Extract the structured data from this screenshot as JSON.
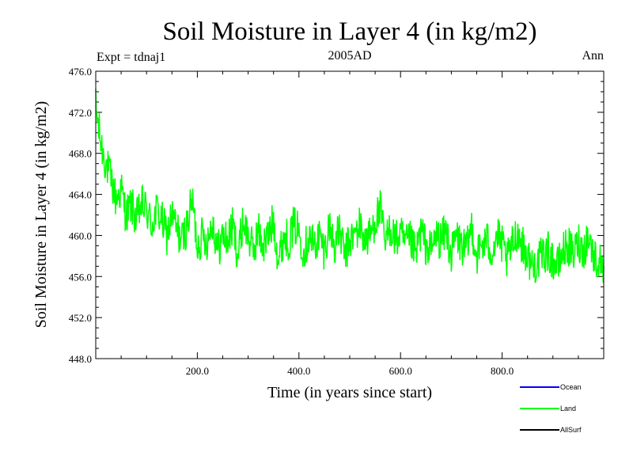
{
  "chart_data": {
    "type": "line",
    "title": "Soil Moisture in Layer 4 (in kg/m2)",
    "subtitle_left": "Expt = tdnaj1",
    "subtitle_center": "2005AD",
    "subtitle_right": "Ann",
    "xlabel": "Time (in years since start)",
    "ylabel": "Soil Moisture in Layer 4 (in kg/m2)",
    "xlim": [
      0,
      1000
    ],
    "ylim": [
      448,
      476
    ],
    "xticks": [
      200,
      400,
      600,
      800
    ],
    "xtick_labels": [
      "200.0",
      "400.0",
      "600.0",
      "800.0"
    ],
    "yticks": [
      448,
      452,
      456,
      460,
      464,
      468,
      472,
      476
    ],
    "ytick_labels": [
      "448.0",
      "452.0",
      "456.0",
      "460.0",
      "464.0",
      "468.0",
      "472.0",
      "476.0"
    ],
    "series": [
      {
        "name": "Ocean",
        "color": "#0000ff",
        "x": [],
        "values": []
      },
      {
        "name": "Land",
        "color": "#00ff00",
        "x": [
          0,
          10,
          20,
          30,
          40,
          50,
          60,
          70,
          80,
          90,
          100,
          110,
          120,
          130,
          140,
          150,
          160,
          170,
          180,
          190,
          200,
          210,
          220,
          230,
          240,
          250,
          260,
          270,
          280,
          290,
          300,
          310,
          320,
          330,
          340,
          350,
          360,
          370,
          380,
          390,
          400,
          410,
          420,
          430,
          440,
          450,
          460,
          470,
          480,
          490,
          500,
          510,
          520,
          530,
          540,
          550,
          560,
          570,
          580,
          590,
          600,
          610,
          620,
          630,
          640,
          650,
          660,
          670,
          680,
          690,
          700,
          710,
          720,
          730,
          740,
          750,
          760,
          770,
          780,
          790,
          800,
          810,
          820,
          830,
          840,
          850,
          860,
          870,
          880,
          890,
          900,
          910,
          920,
          930,
          940,
          950,
          960,
          970,
          980,
          990,
          1000
        ],
        "values": [
          472.5,
          469.0,
          467.0,
          465.5,
          463.5,
          464.5,
          462.0,
          463.0,
          461.5,
          463.0,
          462.5,
          461.0,
          462.5,
          461.5,
          460.0,
          462.0,
          460.5,
          459.5,
          461.0,
          463.5,
          459.0,
          460.0,
          459.5,
          461.5,
          458.5,
          460.0,
          459.5,
          461.0,
          458.0,
          461.5,
          460.0,
          458.5,
          460.5,
          459.0,
          460.0,
          461.5,
          457.5,
          460.0,
          459.5,
          461.0,
          460.5,
          458.5,
          460.0,
          459.0,
          460.0,
          458.5,
          461.0,
          459.0,
          460.5,
          458.0,
          459.5,
          460.0,
          461.0,
          459.5,
          460.0,
          461.5,
          462.5,
          459.0,
          461.0,
          459.5,
          460.0,
          459.0,
          459.5,
          458.0,
          460.5,
          459.0,
          458.5,
          460.0,
          459.5,
          460.5,
          458.0,
          460.0,
          459.0,
          458.5,
          461.0,
          458.0,
          459.0,
          459.5,
          458.5,
          460.0,
          459.0,
          457.5,
          459.0,
          460.5,
          459.0,
          458.0,
          457.0,
          457.5,
          458.0,
          458.5,
          457.5,
          457.0,
          458.5,
          459.0,
          458.0,
          459.5,
          458.5,
          460.0,
          458.0,
          457.5,
          457.0
        ]
      },
      {
        "name": "AllSurf",
        "color": "#000000",
        "x": [],
        "values": []
      }
    ],
    "legend_position": "bottom-right"
  }
}
